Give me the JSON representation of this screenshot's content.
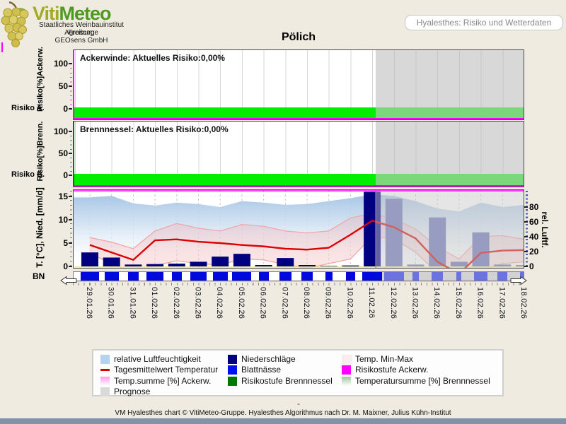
{
  "header": {
    "logo_part1": "Viti",
    "logo_part2": "Meteo",
    "logo_lines": [
      "Staatliches Weinbauinstitut Freiburg",
      "Agroscope",
      "GEOsens GmbH"
    ],
    "page_label": "Hyalesthes: Risiko und Wetterdaten"
  },
  "title": "Pölich",
  "panels": {
    "ackerwinde": {
      "title": "Ackerwinde: Aktuelles Risiko:0,00%",
      "ylabel": "Risiko[%]Ackerw.",
      "yticks": [
        "100",
        "50",
        "0"
      ],
      "axis_caption": "Risiko A."
    },
    "brennnessel": {
      "title": "Brennnessel: Aktuelles Risiko:0,00%",
      "ylabel": "Risiko[%]Brenn.",
      "yticks": [
        "100",
        "50",
        "0"
      ],
      "axis_caption": "Risiko B."
    },
    "weather": {
      "ylabel_left": "T. [°C], Nied. [mm/d]",
      "yticks_left": [
        "15",
        "10",
        "5",
        "0"
      ],
      "ylabel_right": "rel. Luftf.",
      "yticks_right": [
        "80",
        "60",
        "40",
        "20",
        "0"
      ],
      "bn_caption": "BN"
    }
  },
  "chart_data": [
    {
      "id": "ackerwinde_risiko",
      "type": "line",
      "title": "Ackerwinde: Aktuelles Risiko:0,00%",
      "current_risk_percent": 0.0,
      "constant_value_percent": 0,
      "ylabel": "Risiko[%]Ackerw.",
      "ylim": [
        0,
        115
      ],
      "risk_band_level": "green (0)"
    },
    {
      "id": "brennnessel_risiko",
      "type": "line",
      "title": "Brennnessel: Aktuelles Risiko:0,00%",
      "current_risk_percent": 0.0,
      "constant_value_percent": 0,
      "ylabel": "Risiko[%]Brenn.",
      "ylim": [
        0,
        115
      ],
      "risk_band_level": "green (0)"
    },
    {
      "id": "weather",
      "type": "composite",
      "dates": [
        "29.01.26",
        "30.01.26",
        "31.01.26",
        "01.02.26",
        "02.02.26",
        "03.02.26",
        "04.02.26",
        "05.02.26",
        "06.02.26",
        "07.02.26",
        "08.02.26",
        "09.02.26",
        "10.02.26",
        "11.02.26",
        "12.02.26",
        "13.02.26",
        "14.02.26",
        "15.02.26",
        "16.02.26",
        "17.02.26",
        "18.02.26"
      ],
      "forecast_start_date": "11.02.26",
      "forecast_start_index": 13.2,
      "ylim_left_temp_precip": [
        0,
        16.5
      ],
      "ylim_right_humidity": [
        0,
        104
      ],
      "series": [
        {
          "name": "relative Luftfeuchtigkeit",
          "type": "area",
          "axis": "right",
          "unit": "%",
          "values": [
            93,
            95,
            85,
            82,
            86,
            84,
            80,
            88,
            86,
            83,
            84,
            88,
            92,
            97,
            95,
            88,
            78,
            74,
            86,
            80,
            83
          ]
        },
        {
          "name": "Tagesmittelwert Temperatur",
          "type": "line",
          "axis": "left",
          "unit": "°C",
          "values": [
            4.6,
            3.0,
            1.4,
            5.6,
            5.8,
            5.3,
            5.0,
            4.6,
            4.3,
            3.8,
            3.6,
            4.0,
            6.8,
            9.8,
            8.4,
            6.0,
            1.0,
            -1.6,
            2.9,
            3.4,
            3.5
          ]
        },
        {
          "name": "Temp. Min-Max",
          "type": "band",
          "axis": "left",
          "unit": "°C",
          "min": [
            2.8,
            0.6,
            -1.4,
            0.2,
            1.2,
            0.6,
            0.3,
            1.6,
            1.4,
            0.4,
            -0.4,
            0.6,
            1.6,
            6.4,
            6.0,
            3.0,
            -1.4,
            -4.2,
            -0.8,
            0.6,
            1.0
          ],
          "max": [
            6.2,
            5.2,
            3.8,
            7.6,
            9.2,
            8.2,
            7.6,
            9.0,
            8.6,
            7.6,
            7.2,
            7.6,
            10.4,
            11.4,
            10.2,
            8.0,
            4.2,
            1.6,
            6.4,
            6.6,
            5.8
          ]
        },
        {
          "name": "Niederschläge",
          "type": "bar",
          "axis": "left",
          "unit": "mm",
          "values": [
            3.0,
            1.9,
            0.4,
            0.5,
            0.6,
            1.0,
            2.1,
            2.7,
            0.3,
            1.8,
            0.3,
            0.1,
            0.2,
            16.0,
            14.5,
            0.4,
            10.5,
            1.0,
            7.3,
            0.4,
            0.3
          ]
        },
        {
          "name": "Blattnässe",
          "type": "strip",
          "unit": "fraction of day wet",
          "values": [
            0.95,
            0.7,
            0.55,
            0.85,
            0.5,
            0.8,
            0.75,
            0.95,
            0.5,
            0.6,
            0.55,
            0.35,
            0.45,
            1.0,
            1.0,
            0.35,
            0.55,
            0.25,
            0.65,
            0.5,
            0.4
          ]
        }
      ]
    }
  ],
  "legend": {
    "items": [
      {
        "label": "relative Luftfeuchtigkeit",
        "swatch": "box",
        "color": "#b5d2ee",
        "col": 0
      },
      {
        "label": "Tagesmittelwert Temperatur",
        "swatch": "line",
        "color": "#dd0000",
        "col": 0
      },
      {
        "label": "Temp.summe [%] Ackerw.",
        "swatch": "gradient",
        "color": "#ff9dee",
        "color2": "#ffffff",
        "col": 0
      },
      {
        "label": "Prognose",
        "swatch": "box",
        "color": "#d9d9d9",
        "col": 0
      },
      {
        "label": "Niederschläge",
        "swatch": "box",
        "color": "#000080",
        "col": 1
      },
      {
        "label": "Blattnässe",
        "swatch": "box",
        "color": "#0011ee",
        "col": 1
      },
      {
        "label": "Risikostufe Brennnessel",
        "swatch": "box",
        "color": "#007700",
        "col": 1
      },
      {
        "label": "Temp. Min-Max",
        "swatch": "box",
        "color": "#f9edef",
        "col": 2
      },
      {
        "label": "Risikostufe Ackerw.",
        "swatch": "box",
        "color": "#ff00ff",
        "col": 2
      },
      {
        "label": "Temperatursumme [%] Brennnessel",
        "swatch": "gradient",
        "color": "#9cc89c",
        "color2": "#ffffff",
        "col": 2
      }
    ]
  },
  "footer": {
    "separator": "-",
    "credit": "VM Hyalesthes chart © VitiMeteo-Gruppe. Hyalesthes Algorithmus nach Dr. M. Maixner, Julius Kühn-Institut"
  },
  "colors": {
    "page_beige": "#efebe0",
    "accent_magenta": "#ff00ff",
    "risk_band_green": "#00ee00",
    "risk_band_green_forecast": "#7ad87a",
    "brennnessel_axis_green": "#007700",
    "precipitation_navy": "#000080",
    "leaf_wetness_blue": "#0009dd",
    "temperature_red": "#dd0000",
    "humidity_area_blue": "#a5c5e5",
    "minmax_band_pink": "#f6aaaa",
    "forecast_gray": "#d2d2d2",
    "footer_bar_slate": "#8093a8"
  }
}
